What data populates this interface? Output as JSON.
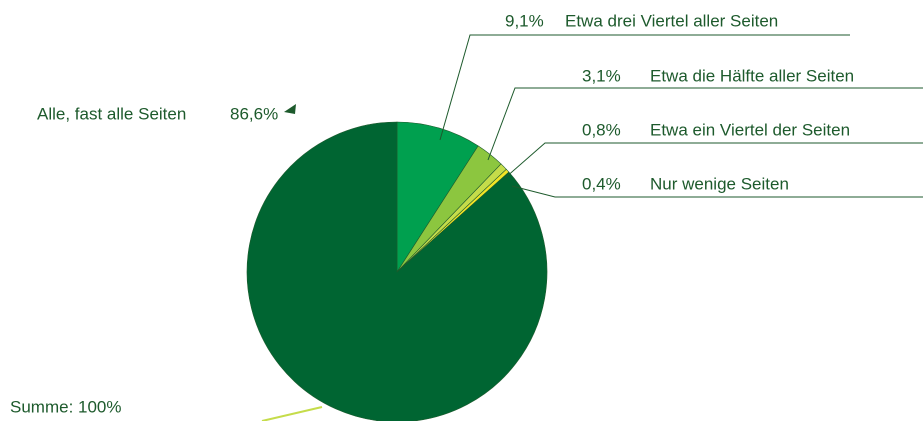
{
  "chart_data": {
    "type": "pie",
    "categories": [
      "Etwa drei Viertel aller Seiten",
      "Etwa die Hälfte aller Seiten",
      "Etwa ein Viertel der Seiten",
      "Nur wenige Seiten",
      "Alle, fast alle Seiten"
    ],
    "values": [
      9.1,
      3.1,
      0.8,
      0.4,
      86.6
    ],
    "value_labels": [
      "9,1%",
      "3,1%",
      "0,8%",
      "0,4%",
      "86,6%"
    ],
    "colors": [
      "#00a04f",
      "#8cc63f",
      "#c5dc4a",
      "#f2e526",
      "#006532"
    ],
    "annotation": "Summe: 100%"
  }
}
